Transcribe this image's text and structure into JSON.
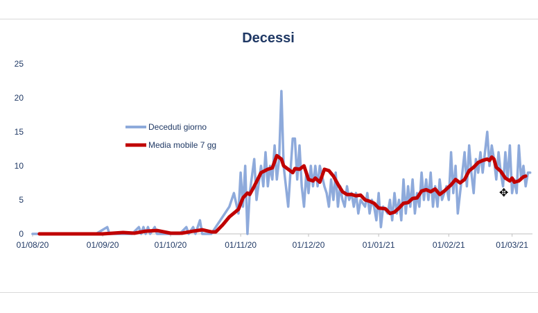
{
  "chart_data": {
    "type": "line",
    "title": "Decessi",
    "x_tick_labels": [
      "01/08/20",
      "01/09/20",
      "01/10/20",
      "01/11/20",
      "01/12/20",
      "01/01/21",
      "01/02/21",
      "01/03/21"
    ],
    "y_tick_labels": [
      "0",
      "5",
      "10",
      "15",
      "20",
      "25"
    ],
    "ylim": [
      0,
      25
    ],
    "x_range": [
      "01/08/20",
      "10/03/21"
    ],
    "grid": false,
    "legend_position": "upper-left",
    "series": [
      {
        "name": "Deceduti giorno",
        "color": "#8eaadb",
        "points": [
          [
            "01/08/20",
            0
          ],
          [
            "03/08/20",
            0
          ],
          [
            "08/08/20",
            0
          ],
          [
            "15/08/20",
            0
          ],
          [
            "22/08/20",
            0
          ],
          [
            "29/08/20",
            0
          ],
          [
            "03/09/20",
            1
          ],
          [
            "04/09/20",
            0
          ],
          [
            "10/09/20",
            0
          ],
          [
            "14/09/20",
            0
          ],
          [
            "17/09/20",
            1
          ],
          [
            "18/09/20",
            0
          ],
          [
            "19/09/20",
            1
          ],
          [
            "20/09/20",
            0
          ],
          [
            "21/09/20",
            1
          ],
          [
            "22/09/20",
            0
          ],
          [
            "24/09/20",
            1
          ],
          [
            "25/09/20",
            0
          ],
          [
            "01/10/20",
            0
          ],
          [
            "05/10/20",
            0
          ],
          [
            "08/10/20",
            1
          ],
          [
            "09/10/20",
            0
          ],
          [
            "11/10/20",
            1
          ],
          [
            "12/10/20",
            0
          ],
          [
            "14/10/20",
            2
          ],
          [
            "15/10/20",
            0
          ],
          [
            "19/10/20",
            0
          ],
          [
            "23/10/20",
            2
          ],
          [
            "25/10/20",
            3
          ],
          [
            "27/10/20",
            4
          ],
          [
            "29/10/20",
            6
          ],
          [
            "31/10/20",
            3
          ],
          [
            "01/11/20",
            9
          ],
          [
            "02/11/20",
            4
          ],
          [
            "03/11/20",
            10
          ],
          [
            "04/11/20",
            0
          ],
          [
            "05/11/20",
            6
          ],
          [
            "07/11/20",
            11
          ],
          [
            "08/11/20",
            5
          ],
          [
            "10/11/20",
            10
          ],
          [
            "11/11/20",
            7
          ],
          [
            "12/11/20",
            12
          ],
          [
            "13/11/20",
            7
          ],
          [
            "14/11/20",
            10
          ],
          [
            "15/11/20",
            8
          ],
          [
            "16/11/20",
            13
          ],
          [
            "17/11/20",
            8
          ],
          [
            "18/11/20",
            11
          ],
          [
            "19/11/20",
            21
          ],
          [
            "20/11/20",
            10
          ],
          [
            "22/11/20",
            4
          ],
          [
            "23/11/20",
            9
          ],
          [
            "24/11/20",
            14
          ],
          [
            "25/11/20",
            14
          ],
          [
            "26/11/20",
            8
          ],
          [
            "27/11/20",
            13
          ],
          [
            "28/11/20",
            7
          ],
          [
            "29/11/20",
            4
          ],
          [
            "30/11/20",
            9
          ],
          [
            "01/12/20",
            6
          ],
          [
            "02/12/20",
            10
          ],
          [
            "03/12/20",
            7
          ],
          [
            "04/12/20",
            10
          ],
          [
            "05/12/20",
            7
          ],
          [
            "06/12/20",
            10
          ],
          [
            "08/12/20",
            7
          ],
          [
            "09/12/20",
            6
          ],
          [
            "10/12/20",
            4
          ],
          [
            "11/12/20",
            8
          ],
          [
            "12/12/20",
            5
          ],
          [
            "13/12/20",
            9
          ],
          [
            "14/12/20",
            4
          ],
          [
            "15/12/20",
            7
          ],
          [
            "16/12/20",
            5
          ],
          [
            "17/12/20",
            4
          ],
          [
            "18/12/20",
            7
          ],
          [
            "19/12/20",
            5
          ],
          [
            "20/12/20",
            6
          ],
          [
            "21/12/20",
            4
          ],
          [
            "22/12/20",
            6
          ],
          [
            "23/12/20",
            3
          ],
          [
            "24/12/20",
            5
          ],
          [
            "26/12/20",
            4
          ],
          [
            "27/12/20",
            6
          ],
          [
            "28/12/20",
            3
          ],
          [
            "29/12/20",
            5
          ],
          [
            "30/12/20",
            4
          ],
          [
            "31/12/20",
            2
          ],
          [
            "01/01/21",
            6
          ],
          [
            "02/01/21",
            1
          ],
          [
            "03/01/21",
            4
          ],
          [
            "05/01/21",
            3
          ],
          [
            "06/01/21",
            5
          ],
          [
            "07/01/21",
            2
          ],
          [
            "08/01/21",
            6
          ],
          [
            "09/01/21",
            3
          ],
          [
            "10/01/21",
            5
          ],
          [
            "11/01/21",
            2
          ],
          [
            "12/01/21",
            8
          ],
          [
            "13/01/21",
            3
          ],
          [
            "14/01/21",
            7
          ],
          [
            "15/01/21",
            4
          ],
          [
            "16/01/21",
            8
          ],
          [
            "17/01/21",
            3
          ],
          [
            "18/01/21",
            6
          ],
          [
            "19/01/21",
            4
          ],
          [
            "20/01/21",
            9
          ],
          [
            "21/01/21",
            5
          ],
          [
            "22/01/21",
            8
          ],
          [
            "23/01/21",
            5
          ],
          [
            "24/01/21",
            9
          ],
          [
            "25/01/21",
            4
          ],
          [
            "26/01/21",
            7
          ],
          [
            "27/01/21",
            4
          ],
          [
            "28/01/21",
            8
          ],
          [
            "29/01/21",
            5
          ],
          [
            "31/01/21",
            7
          ],
          [
            "01/02/21",
            5
          ],
          [
            "02/02/21",
            12
          ],
          [
            "03/02/21",
            6
          ],
          [
            "04/02/21",
            10
          ],
          [
            "05/02/21",
            3
          ],
          [
            "07/02/21",
            9
          ],
          [
            "08/02/21",
            12
          ],
          [
            "09/02/21",
            7
          ],
          [
            "10/02/21",
            13
          ],
          [
            "11/02/21",
            9
          ],
          [
            "12/02/21",
            6
          ],
          [
            "13/02/21",
            11
          ],
          [
            "14/02/21",
            9
          ],
          [
            "15/02/21",
            12
          ],
          [
            "16/02/21",
            9
          ],
          [
            "17/02/21",
            12
          ],
          [
            "18/02/21",
            15
          ],
          [
            "19/02/21",
            10
          ],
          [
            "20/02/21",
            13
          ],
          [
            "21/02/21",
            11
          ],
          [
            "22/02/21",
            8
          ],
          [
            "23/02/21",
            12
          ],
          [
            "24/02/21",
            9
          ],
          [
            "25/02/21",
            7
          ],
          [
            "26/02/21",
            12
          ],
          [
            "27/02/21",
            8
          ],
          [
            "28/02/21",
            13
          ],
          [
            "01/03/21",
            6
          ],
          [
            "02/03/21",
            8
          ],
          [
            "03/03/21",
            6
          ],
          [
            "04/03/21",
            13
          ],
          [
            "05/03/21",
            8
          ],
          [
            "06/03/21",
            10
          ],
          [
            "07/03/21",
            7
          ],
          [
            "08/03/21",
            9
          ],
          [
            "09/03/21",
            9
          ]
        ]
      },
      {
        "name": "Media mobile 7 gg",
        "color": "#c00000",
        "points": [
          [
            "04/08/20",
            0
          ],
          [
            "01/09/20",
            0
          ],
          [
            "10/09/20",
            0.2
          ],
          [
            "15/09/20",
            0.1
          ],
          [
            "20/09/20",
            0.4
          ],
          [
            "25/09/20",
            0.5
          ],
          [
            "01/10/20",
            0.1
          ],
          [
            "06/10/20",
            0.1
          ],
          [
            "11/10/20",
            0.4
          ],
          [
            "15/10/20",
            0.6
          ],
          [
            "19/10/20",
            0.3
          ],
          [
            "21/10/20",
            0.3
          ],
          [
            "24/10/20",
            1.3
          ],
          [
            "27/10/20",
            2.5
          ],
          [
            "31/10/20",
            3.6
          ],
          [
            "02/11/20",
            5.3
          ],
          [
            "04/11/20",
            6.0
          ],
          [
            "05/11/20",
            5.8
          ],
          [
            "07/11/20",
            7.0
          ],
          [
            "10/11/20",
            9.0
          ],
          [
            "13/11/20",
            9.5
          ],
          [
            "15/11/20",
            9.7
          ],
          [
            "17/11/20",
            11.5
          ],
          [
            "19/11/20",
            11.0
          ],
          [
            "20/11/20",
            10.0
          ],
          [
            "22/11/20",
            9.5
          ],
          [
            "24/11/20",
            9.0
          ],
          [
            "25/11/20",
            9.6
          ],
          [
            "27/11/20",
            9.5
          ],
          [
            "29/11/20",
            10.0
          ],
          [
            "01/12/20",
            8.0
          ],
          [
            "03/12/20",
            7.8
          ],
          [
            "04/12/20",
            8.2
          ],
          [
            "06/12/20",
            7.6
          ],
          [
            "08/12/20",
            9.5
          ],
          [
            "10/12/20",
            9.3
          ],
          [
            "12/12/20",
            8.5
          ],
          [
            "14/12/20",
            7.3
          ],
          [
            "16/12/20",
            6.2
          ],
          [
            "18/12/20",
            5.8
          ],
          [
            "20/12/20",
            5.8
          ],
          [
            "22/12/20",
            5.6
          ],
          [
            "24/12/20",
            5.7
          ],
          [
            "26/12/20",
            5.0
          ],
          [
            "28/12/20",
            4.8
          ],
          [
            "30/12/20",
            4.5
          ],
          [
            "01/01/21",
            3.8
          ],
          [
            "04/01/21",
            3.7
          ],
          [
            "06/01/21",
            3.0
          ],
          [
            "08/01/21",
            3.2
          ],
          [
            "10/01/21",
            3.8
          ],
          [
            "12/01/21",
            4.5
          ],
          [
            "14/01/21",
            4.6
          ],
          [
            "16/01/21",
            5.2
          ],
          [
            "18/01/21",
            5.3
          ],
          [
            "20/01/21",
            6.3
          ],
          [
            "22/01/21",
            6.5
          ],
          [
            "24/01/21",
            6.2
          ],
          [
            "26/01/21",
            6.6
          ],
          [
            "28/01/21",
            5.8
          ],
          [
            "30/01/21",
            6.3
          ],
          [
            "02/02/21",
            7.2
          ],
          [
            "04/02/21",
            8.0
          ],
          [
            "06/02/21",
            7.5
          ],
          [
            "08/02/21",
            8.0
          ],
          [
            "10/02/21",
            9.3
          ],
          [
            "12/02/21",
            9.8
          ],
          [
            "14/02/21",
            10.5
          ],
          [
            "16/02/21",
            10.8
          ],
          [
            "18/02/21",
            11.0
          ],
          [
            "19/02/21",
            10.8
          ],
          [
            "20/02/21",
            11.3
          ],
          [
            "21/02/21",
            11.0
          ],
          [
            "22/02/21",
            9.8
          ],
          [
            "24/02/21",
            9.2
          ],
          [
            "26/02/21",
            8.2
          ],
          [
            "28/02/21",
            7.8
          ],
          [
            "01/03/21",
            8.2
          ],
          [
            "02/03/21",
            7.6
          ],
          [
            "04/03/21",
            7.8
          ],
          [
            "06/03/21",
            8.4
          ],
          [
            "07/03/21",
            8.5
          ]
        ]
      }
    ]
  }
}
